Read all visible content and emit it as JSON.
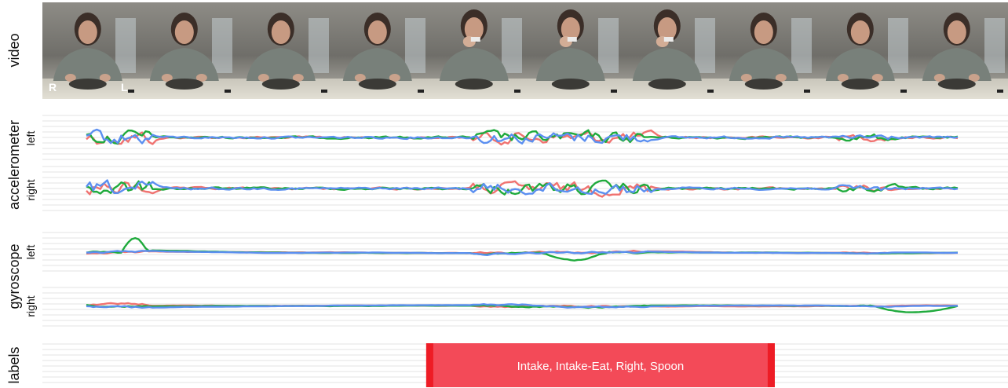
{
  "figure": {
    "rows": {
      "video": "video",
      "accelerometer": "accelerometer",
      "gyroscope": "gyroscope",
      "labels": "labels"
    },
    "sublabels": {
      "left": "left",
      "right": "right"
    },
    "frame_tags": {
      "right_hand": "R",
      "left_hand": "L"
    },
    "video_frame_count": 10,
    "channel_colors": [
      "#F07270",
      "#1FAA3C",
      "#5B8FF0"
    ],
    "label_bar_color": "#F34A58",
    "label_edge_color": "#EE1C25",
    "grid_color": "#E3E3E3"
  },
  "chart_data": {
    "type": "line",
    "xlim": [
      0,
      1000
    ],
    "grid": true,
    "panels": [
      {
        "group": "accelerometer",
        "side": "left"
      },
      {
        "group": "accelerometer",
        "side": "right"
      },
      {
        "group": "gyroscope",
        "side": "left"
      },
      {
        "group": "gyroscope",
        "side": "right"
      }
    ],
    "label_segments": [
      {
        "start": 390,
        "end": 790,
        "text": "Intake, Intake-Eat, Right, Spoon"
      }
    ]
  }
}
